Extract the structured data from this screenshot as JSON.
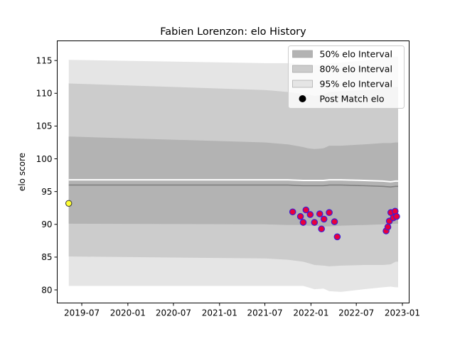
{
  "chart_data": {
    "type": "line",
    "title": "Fabien Lorenzon: elo History",
    "xlabel": "",
    "ylabel": "elo score",
    "ylim": [
      78,
      118
    ],
    "xlim": [
      "2019-03-25",
      "2023-01-28"
    ],
    "x_ticks": [
      "2019-07-01",
      "2020-01-01",
      "2020-07-01",
      "2021-01-01",
      "2021-07-01",
      "2022-01-01",
      "2022-07-01",
      "2023-01-01"
    ],
    "x_tick_labels": [
      "2019-07",
      "2020-01",
      "2020-07",
      "2021-01",
      "2021-07",
      "2022-01",
      "2022-07",
      "2023-01"
    ],
    "y_ticks": [
      80,
      85,
      90,
      95,
      100,
      105,
      110,
      115
    ],
    "y_tick_labels": [
      "80",
      "85",
      "90",
      "95",
      "100",
      "105",
      "110",
      "115"
    ],
    "legend_position": "top-right",
    "legend": [
      "50% elo Interval",
      "80% elo Interval",
      "95% elo Interval",
      "Post Match elo"
    ],
    "colors": {
      "band50": "#b3b3b3",
      "band80": "#cccccc",
      "band95": "#e5e5e5",
      "median_line": "#808080",
      "mean_line": "#ffffff",
      "point_face": "#e8003c",
      "point_edge": "#3b1fd6",
      "initial_point_face": "#ffff33",
      "initial_point_edge": "#333333"
    },
    "series": [
      {
        "name": "50% elo Interval",
        "x": [
          "2019-05-10",
          "2021-07-01",
          "2021-10-01",
          "2021-12-01",
          "2021-12-20",
          "2022-01-15",
          "2022-02-20",
          "2022-03-15",
          "2022-05-01",
          "2022-08-01",
          "2022-10-15",
          "2022-11-15",
          "2022-12-05",
          "2022-12-15"
        ],
        "lower": [
          90.1,
          90.0,
          89.9,
          89.9,
          89.8,
          89.8,
          89.7,
          89.7,
          89.8,
          89.9,
          90.0,
          90.0,
          90.1,
          90.1
        ],
        "upper": [
          103.4,
          102.5,
          102.2,
          101.8,
          101.6,
          101.5,
          101.6,
          102.0,
          102.0,
          102.2,
          102.4,
          102.4,
          102.5,
          102.5
        ]
      },
      {
        "name": "80% elo Interval",
        "x": [
          "2019-05-10",
          "2021-07-01",
          "2021-10-01",
          "2021-12-01",
          "2021-12-20",
          "2022-01-15",
          "2022-02-20",
          "2022-03-15",
          "2022-05-01",
          "2022-08-01",
          "2022-10-15",
          "2022-11-15",
          "2022-12-05",
          "2022-12-15"
        ],
        "lower": [
          85.1,
          84.8,
          84.6,
          84.3,
          84.1,
          83.8,
          83.7,
          83.6,
          83.7,
          83.8,
          83.8,
          83.9,
          84.3,
          84.3
        ],
        "upper": [
          111.5,
          110.5,
          110.2,
          109.9,
          109.8,
          109.6,
          109.8,
          110.2,
          110.3,
          110.5,
          110.8,
          110.9,
          111.0,
          111.0
        ]
      },
      {
        "name": "95% elo Interval",
        "x": [
          "2019-05-10",
          "2021-07-01",
          "2021-10-01",
          "2021-12-01",
          "2021-12-20",
          "2022-01-15",
          "2022-02-20",
          "2022-03-15",
          "2022-05-01",
          "2022-08-01",
          "2022-10-15",
          "2022-11-15",
          "2022-12-05",
          "2022-12-15"
        ],
        "lower": [
          80.6,
          80.6,
          80.6,
          80.6,
          80.4,
          80.1,
          80.2,
          79.8,
          79.7,
          80.1,
          80.4,
          80.5,
          80.4,
          80.4
        ],
        "upper": [
          115.1,
          114.6,
          114.6,
          114.4,
          114.4,
          114.3,
          114.4,
          114.6,
          114.7,
          115.0,
          115.4,
          115.6,
          115.6,
          115.6
        ]
      }
    ],
    "median_line": {
      "x": [
        "2019-05-10",
        "2021-07-01",
        "2021-10-01",
        "2021-12-01",
        "2021-12-20",
        "2022-01-15",
        "2022-02-20",
        "2022-03-15",
        "2022-05-01",
        "2022-08-01",
        "2022-10-15",
        "2022-11-15",
        "2022-12-05",
        "2022-12-15"
      ],
      "y": [
        96.0,
        96.0,
        96.0,
        95.9,
        95.9,
        95.9,
        95.9,
        96.0,
        96.0,
        95.9,
        95.8,
        95.7,
        95.8,
        95.8
      ]
    },
    "mean_line": {
      "x": [
        "2019-05-10",
        "2021-07-01",
        "2021-10-01",
        "2021-12-01",
        "2021-12-20",
        "2022-01-15",
        "2022-02-20",
        "2022-03-15",
        "2022-05-01",
        "2022-08-01",
        "2022-10-15",
        "2022-11-15",
        "2022-12-05",
        "2022-12-15"
      ],
      "y": [
        96.8,
        96.8,
        96.8,
        96.7,
        96.7,
        96.7,
        96.7,
        96.8,
        96.8,
        96.7,
        96.6,
        96.5,
        96.6,
        96.6
      ]
    },
    "initial_point": {
      "x": "2019-05-10",
      "y": 93.2
    },
    "points": {
      "name": "Post Match elo",
      "x": [
        "2021-10-20",
        "2021-11-20",
        "2021-12-01",
        "2021-12-12",
        "2021-12-29",
        "2022-01-15",
        "2022-02-05",
        "2022-02-12",
        "2022-02-22",
        "2022-03-15",
        "2022-04-05",
        "2022-04-16",
        "2022-10-28",
        "2022-11-04",
        "2022-11-10",
        "2022-11-16",
        "2022-11-26",
        "2022-12-03",
        "2022-12-09"
      ],
      "y": [
        91.9,
        91.2,
        90.3,
        92.2,
        91.5,
        90.3,
        91.6,
        89.3,
        90.8,
        91.8,
        90.4,
        88.1,
        89.0,
        89.6,
        90.5,
        91.8,
        91.0,
        92.0,
        91.2
      ]
    }
  }
}
